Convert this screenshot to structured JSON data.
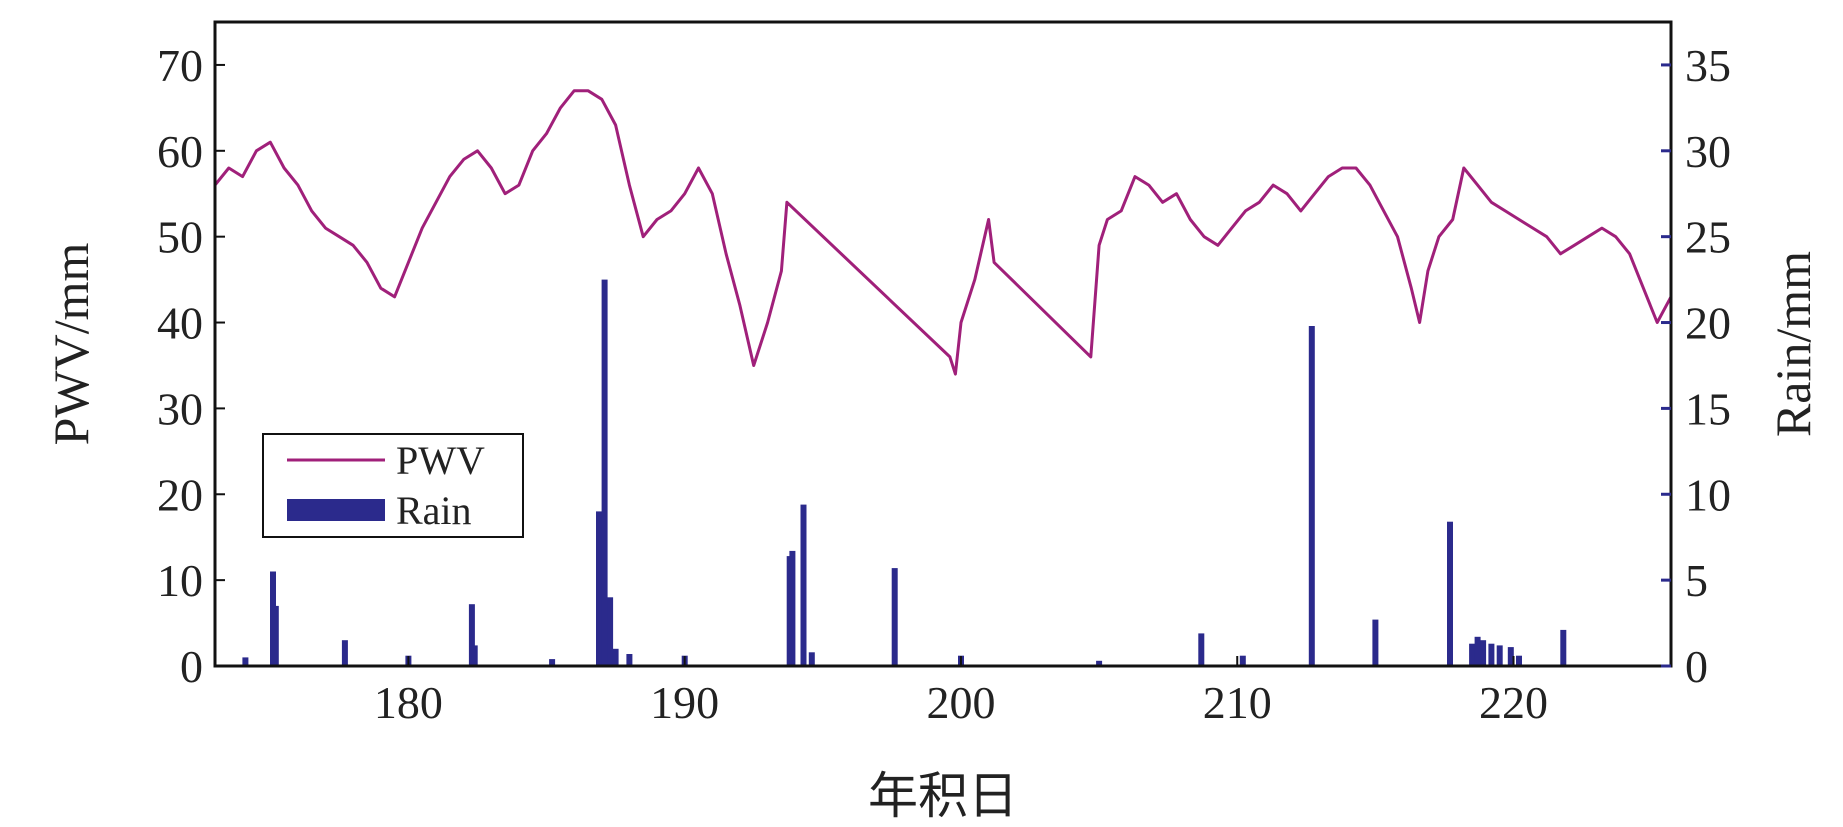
{
  "colors": {
    "pwv": "#a0207a",
    "rain": "#2b2a8c",
    "axis": "#111111"
  },
  "chart_data": {
    "type": "line",
    "xlabel": "年积日",
    "ylabel_left": "PWV/mm",
    "ylabel_right": "Rain/mm",
    "xlim": [
      173,
      225.7
    ],
    "ylim_left": [
      0,
      75
    ],
    "ylim_right": [
      0,
      37.5
    ],
    "x_ticks": [
      180,
      190,
      200,
      210,
      220
    ],
    "y_left_ticks": [
      0,
      10,
      20,
      30,
      40,
      50,
      60,
      70
    ],
    "y_right_ticks": [
      0,
      5,
      10,
      15,
      20,
      25,
      30,
      35
    ],
    "legend": {
      "position": "center-left",
      "entries": [
        "PWV",
        "Rain"
      ]
    },
    "grid": false,
    "series": [
      {
        "name": "PWV",
        "type": "line",
        "axis": "left",
        "x": [
          173,
          173.5,
          174,
          174.5,
          175,
          175.5,
          176,
          176.5,
          177,
          177.5,
          178,
          178.5,
          179,
          179.5,
          180,
          180.5,
          181,
          181.5,
          182,
          182.5,
          183,
          183.5,
          184,
          184.5,
          185,
          185.5,
          186,
          186.5,
          187,
          187.5,
          188,
          188.5,
          189,
          189.5,
          190,
          190.5,
          191,
          191.5,
          192,
          192.5,
          193,
          193.5,
          193.7,
          199.6,
          199.8,
          200,
          200.5,
          201,
          201.2,
          204.7,
          205,
          205.3,
          205.8,
          206.3,
          206.8,
          207.3,
          207.8,
          208.3,
          208.8,
          209.3,
          209.8,
          210.3,
          210.8,
          211.3,
          211.8,
          212.3,
          212.8,
          213.3,
          213.8,
          214.3,
          214.8,
          215.3,
          215.8,
          216.3,
          216.6,
          216.9,
          217.3,
          217.8,
          218.2,
          218.7,
          219.2,
          219.7,
          220.2,
          220.7,
          221.2,
          221.7,
          222.2,
          222.7,
          223.2,
          223.7,
          224.2,
          224.7,
          225.2,
          225.7
        ],
        "values": [
          56,
          58,
          57,
          60,
          61,
          58,
          56,
          53,
          51,
          50,
          49,
          47,
          44,
          43,
          47,
          51,
          54,
          57,
          59,
          60,
          58,
          55,
          56,
          60,
          62,
          65,
          67,
          67,
          66,
          63,
          56,
          50,
          52,
          53,
          55,
          58,
          55,
          48,
          42,
          35,
          40,
          46,
          54,
          36,
          34,
          40,
          45,
          52,
          47,
          36,
          49,
          52,
          53,
          57,
          56,
          54,
          55,
          52,
          50,
          49,
          51,
          53,
          54,
          56,
          55,
          53,
          55,
          57,
          58,
          58,
          56,
          53,
          50,
          44,
          40,
          46,
          50,
          52,
          58,
          56,
          54,
          53,
          52,
          51,
          50,
          48,
          49,
          50,
          51,
          50,
          48,
          44,
          40,
          43
        ]
      },
      {
        "name": "Rain",
        "type": "bar",
        "axis": "right",
        "x": [
          174.1,
          175.1,
          175.2,
          177.7,
          180,
          182.3,
          182.4,
          185.2,
          186.9,
          187.1,
          187.3,
          187.5,
          188,
          190,
          193.8,
          193.9,
          194.3,
          194.6,
          197.6,
          200,
          205,
          208.7,
          210.2,
          212.7,
          215,
          217.7,
          218.5,
          218.7,
          218.9,
          219.2,
          219.5,
          219.9,
          220.2,
          221.8
        ],
        "values": [
          0.5,
          5.5,
          3.5,
          1.5,
          0.6,
          3.6,
          1.2,
          0.4,
          9,
          22.5,
          4,
          1,
          0.7,
          0.6,
          6.4,
          6.7,
          9.4,
          0.8,
          5.7,
          0.6,
          0.3,
          1.9,
          0.6,
          19.8,
          2.7,
          8.4,
          1.3,
          1.7,
          1.5,
          1.3,
          1.2,
          1.1,
          0.6,
          2.1
        ]
      }
    ]
  }
}
